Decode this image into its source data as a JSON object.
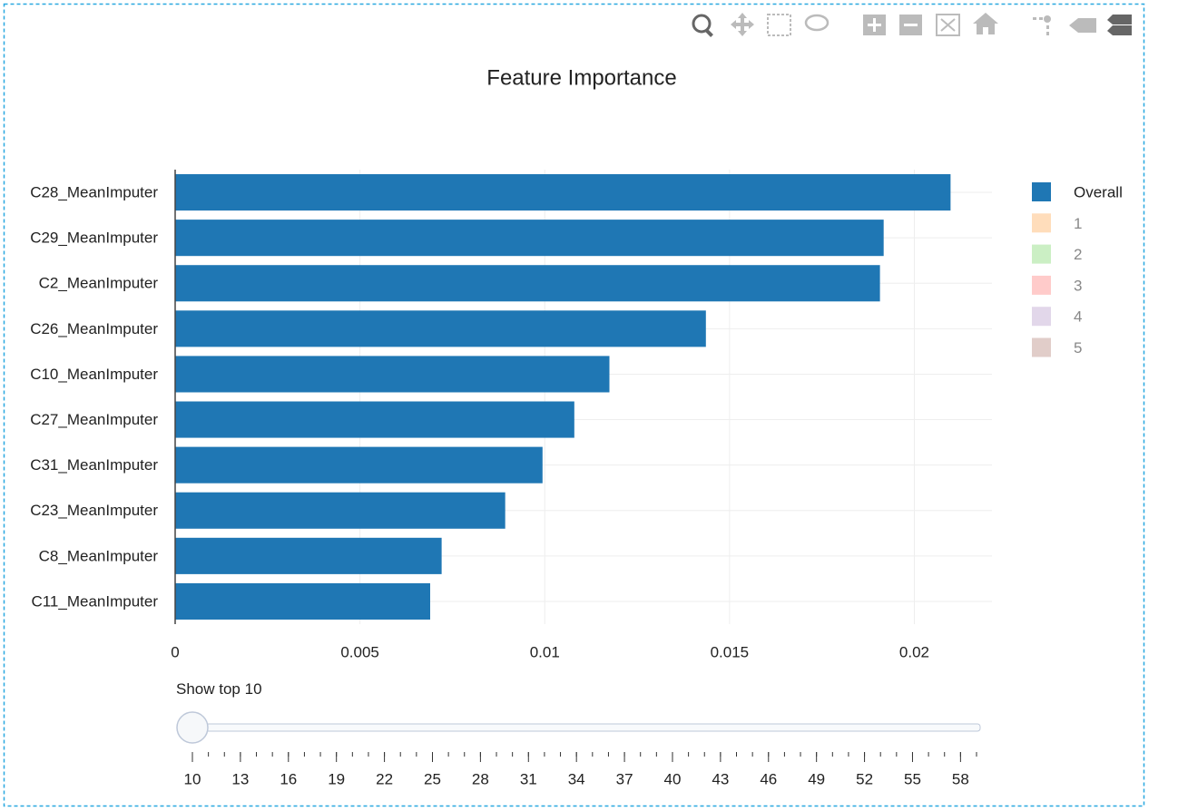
{
  "chart_data": {
    "type": "bar",
    "orientation": "h",
    "title": "Feature Importance",
    "categories": [
      "C28_MeanImputer",
      "C29_MeanImputer",
      "C2_MeanImputer",
      "C26_MeanImputer",
      "C10_MeanImputer",
      "C27_MeanImputer",
      "C31_MeanImputer",
      "C23_MeanImputer",
      "C8_MeanImputer",
      "C11_MeanImputer"
    ],
    "series": [
      {
        "name": "Overall",
        "color": "#1f77b4",
        "visible": true,
        "values": [
          0.02098,
          0.01917,
          0.01907,
          0.01436,
          0.01175,
          0.0108,
          0.00994,
          0.00893,
          0.00721,
          0.0069
        ]
      },
      {
        "name": "1",
        "color": "#ffbb78",
        "visible": false
      },
      {
        "name": "2",
        "color": "#98df8a",
        "visible": false
      },
      {
        "name": "3",
        "color": "#ff9896",
        "visible": false
      },
      {
        "name": "4",
        "color": "#c5b0d5",
        "visible": false
      },
      {
        "name": "5",
        "color": "#c49c94",
        "visible": false
      }
    ],
    "xlim": [
      0,
      0.0221
    ],
    "xticks": [
      0,
      0.005,
      0.01,
      0.015,
      0.02
    ],
    "grid": true,
    "legend": "right",
    "slider": {
      "prefix": "Show top",
      "active": 10,
      "min": 10,
      "max": 59,
      "step": 1,
      "labels": [
        10,
        13,
        16,
        19,
        22,
        25,
        28,
        31,
        34,
        37,
        40,
        43,
        46,
        49,
        52,
        55,
        58
      ]
    }
  }
}
